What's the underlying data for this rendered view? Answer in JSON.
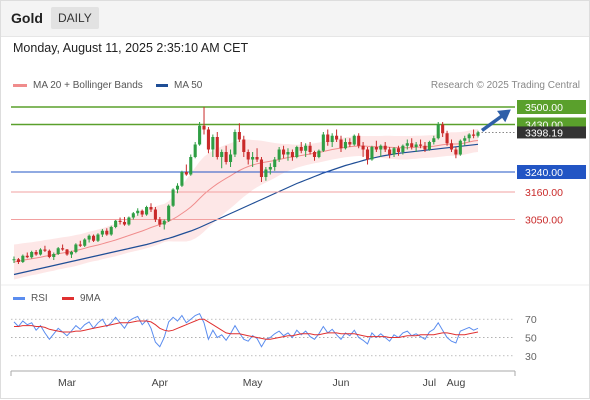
{
  "header": {
    "symbol": "Gold",
    "period": "DAILY",
    "datetime": "Monday, August 11, 2025 2:35:10 AM CET",
    "credit": "Research © 2025 Trading Central"
  },
  "legend": {
    "bollinger_label": "MA 20 + Bollinger Bands",
    "ma50_label": "MA 50",
    "rsi_label": "RSI",
    "rsi_ma_label": "9MA"
  },
  "colors": {
    "bullish": "#2f9e44",
    "bearish": "#c92a2a",
    "ma20": "#f08c8c",
    "band_fill": "#fde3e3",
    "ma50": "#1f4e96",
    "resistance": "#5aa02c",
    "support": "#2255c4",
    "support_light": "#f2a0a0",
    "rsi": "#5b8def",
    "rsi_ma": "#e03131",
    "last_price_bg": "#333333"
  },
  "chart_data": [
    {
      "type": "candlestick",
      "title": "Gold",
      "period": "DAILY",
      "x_ticks": [
        "Mar",
        "Apr",
        "May",
        "Jun",
        "Jul",
        "Aug"
      ],
      "ylim": [
        2800,
        3560
      ],
      "last_price": 3398.19,
      "last_price_label": "3398.19",
      "levels": [
        {
          "value": 3500.0,
          "label": "3500.00",
          "kind": "resistance"
        },
        {
          "value": 3430.0,
          "label": "3430.00",
          "kind": "resistance"
        },
        {
          "value": 3240.0,
          "label": "3240.00",
          "kind": "pivot"
        },
        {
          "value": 3160.0,
          "label": "3160.00",
          "kind": "support"
        },
        {
          "value": 3050.0,
          "label": "3050.00",
          "kind": "support"
        }
      ],
      "forecast_target": 3500.0,
      "ohlc": [
        [
          2888,
          2902,
          2876,
          2891
        ],
        [
          2891,
          2896,
          2872,
          2880
        ],
        [
          2880,
          2910,
          2876,
          2905
        ],
        [
          2905,
          2918,
          2895,
          2899
        ],
        [
          2899,
          2925,
          2894,
          2920
        ],
        [
          2920,
          2928,
          2905,
          2910
        ],
        [
          2910,
          2935,
          2906,
          2930
        ],
        [
          2930,
          2945,
          2920,
          2925
        ],
        [
          2925,
          2930,
          2895,
          2900
        ],
        [
          2900,
          2918,
          2888,
          2912
        ],
        [
          2912,
          2940,
          2908,
          2935
        ],
        [
          2935,
          2950,
          2925,
          2930
        ],
        [
          2930,
          2932,
          2905,
          2910
        ],
        [
          2910,
          2925,
          2896,
          2920
        ],
        [
          2920,
          2955,
          2915,
          2950
        ],
        [
          2950,
          2965,
          2940,
          2945
        ],
        [
          2945,
          2975,
          2940,
          2970
        ],
        [
          2970,
          2990,
          2958,
          2985
        ],
        [
          2985,
          2990,
          2960,
          2965
        ],
        [
          2965,
          2995,
          2960,
          2990
        ],
        [
          2990,
          3012,
          2980,
          3005
        ],
        [
          3005,
          3015,
          2985,
          2990
        ],
        [
          2990,
          3025,
          2985,
          3020
        ],
        [
          3020,
          3048,
          3015,
          3045
        ],
        [
          3045,
          3058,
          3030,
          3040
        ],
        [
          3040,
          3060,
          3025,
          3030
        ],
        [
          3030,
          3062,
          3025,
          3058
        ],
        [
          3058,
          3080,
          3050,
          3075
        ],
        [
          3075,
          3095,
          3065,
          3085
        ],
        [
          3085,
          3090,
          3060,
          3070
        ],
        [
          3070,
          3105,
          3065,
          3100
        ],
        [
          3100,
          3115,
          3080,
          3090
        ],
        [
          3090,
          3100,
          3040,
          3050
        ],
        [
          3050,
          3060,
          3020,
          3030
        ],
        [
          3030,
          3050,
          3010,
          3045
        ],
        [
          3045,
          3110,
          3040,
          3105
        ],
        [
          3105,
          3175,
          3100,
          3170
        ],
        [
          3170,
          3195,
          3155,
          3185
        ],
        [
          3185,
          3245,
          3180,
          3240
        ],
        [
          3240,
          3270,
          3225,
          3230
        ],
        [
          3230,
          3310,
          3225,
          3300
        ],
        [
          3300,
          3360,
          3295,
          3350
        ],
        [
          3350,
          3440,
          3345,
          3425
        ],
        [
          3425,
          3500,
          3390,
          3410
        ],
        [
          3410,
          3420,
          3315,
          3330
        ],
        [
          3330,
          3390,
          3300,
          3380
        ],
        [
          3380,
          3400,
          3290,
          3300
        ],
        [
          3300,
          3330,
          3255,
          3320
        ],
        [
          3320,
          3345,
          3270,
          3280
        ],
        [
          3280,
          3330,
          3260,
          3310
        ],
        [
          3310,
          3410,
          3300,
          3400
        ],
        [
          3400,
          3435,
          3360,
          3370
        ],
        [
          3370,
          3385,
          3300,
          3320
        ],
        [
          3320,
          3330,
          3270,
          3290
        ],
        [
          3290,
          3320,
          3260,
          3300
        ],
        [
          3300,
          3335,
          3280,
          3290
        ],
        [
          3290,
          3300,
          3200,
          3220
        ],
        [
          3220,
          3260,
          3205,
          3250
        ],
        [
          3250,
          3275,
          3230,
          3260
        ],
        [
          3260,
          3300,
          3245,
          3290
        ],
        [
          3290,
          3340,
          3280,
          3330
        ],
        [
          3330,
          3345,
          3295,
          3310
        ],
        [
          3310,
          3335,
          3285,
          3320
        ],
        [
          3320,
          3330,
          3285,
          3300
        ],
        [
          3300,
          3345,
          3295,
          3340
        ],
        [
          3340,
          3360,
          3315,
          3325
        ],
        [
          3325,
          3355,
          3300,
          3345
        ],
        [
          3345,
          3360,
          3310,
          3320
        ],
        [
          3320,
          3325,
          3285,
          3300
        ],
        [
          3300,
          3330,
          3295,
          3325
        ],
        [
          3325,
          3400,
          3320,
          3390
        ],
        [
          3390,
          3410,
          3345,
          3360
        ],
        [
          3360,
          3395,
          3340,
          3385
        ],
        [
          3385,
          3410,
          3360,
          3370
        ],
        [
          3370,
          3385,
          3320,
          3335
        ],
        [
          3335,
          3375,
          3330,
          3360
        ],
        [
          3360,
          3375,
          3340,
          3350
        ],
        [
          3350,
          3390,
          3345,
          3385
        ],
        [
          3385,
          3395,
          3335,
          3345
        ],
        [
          3345,
          3360,
          3300,
          3330
        ],
        [
          3330,
          3340,
          3270,
          3290
        ],
        [
          3290,
          3345,
          3285,
          3340
        ],
        [
          3340,
          3365,
          3320,
          3330
        ],
        [
          3330,
          3350,
          3300,
          3345
        ],
        [
          3345,
          3360,
          3320,
          3330
        ],
        [
          3330,
          3340,
          3295,
          3310
        ],
        [
          3310,
          3340,
          3300,
          3335
        ],
        [
          3335,
          3345,
          3305,
          3320
        ],
        [
          3320,
          3350,
          3310,
          3345
        ],
        [
          3345,
          3370,
          3330,
          3355
        ],
        [
          3355,
          3375,
          3330,
          3340
        ],
        [
          3340,
          3360,
          3320,
          3350
        ],
        [
          3350,
          3370,
          3335,
          3345
        ],
        [
          3345,
          3360,
          3320,
          3330
        ],
        [
          3330,
          3365,
          3325,
          3360
        ],
        [
          3360,
          3385,
          3350,
          3375
        ],
        [
          3375,
          3440,
          3370,
          3430
        ],
        [
          3430,
          3440,
          3380,
          3395
        ],
        [
          3395,
          3405,
          3345,
          3355
        ],
        [
          3355,
          3370,
          3320,
          3330
        ],
        [
          3330,
          3340,
          3295,
          3310
        ],
        [
          3310,
          3370,
          3305,
          3365
        ],
        [
          3365,
          3385,
          3345,
          3375
        ],
        [
          3375,
          3395,
          3360,
          3390
        ],
        [
          3390,
          3410,
          3375,
          3385
        ],
        [
          3385,
          3405,
          3378,
          3398.19
        ]
      ],
      "ma20": [
        2880,
        2883,
        2887,
        2890,
        2893,
        2896,
        2899,
        2903,
        2906,
        2909,
        2913,
        2916,
        2919,
        2922,
        2926,
        2930,
        2935,
        2940,
        2944,
        2948,
        2953,
        2958,
        2963,
        2968,
        2974,
        2980,
        2986,
        2992,
        2998,
        3004,
        3011,
        3018,
        3024,
        3030,
        3036,
        3043,
        3052,
        3062,
        3074,
        3086,
        3100,
        3116,
        3134,
        3151,
        3166,
        3180,
        3193,
        3204,
        3215,
        3225,
        3236,
        3246,
        3255,
        3262,
        3268,
        3273,
        3277,
        3280,
        3283,
        3286,
        3290,
        3294,
        3298,
        3300,
        3303,
        3306,
        3309,
        3312,
        3315,
        3318,
        3322,
        3326,
        3330,
        3333,
        3336,
        3339,
        3341,
        3343,
        3344,
        3344,
        3343,
        3342,
        3341,
        3340,
        3340,
        3339,
        3338,
        3337,
        3337,
        3337,
        3338,
        3339,
        3340,
        3341,
        3342,
        3343,
        3346,
        3349,
        3351,
        3352,
        3352,
        3353,
        3356,
        3360,
        3364,
        3366
      ],
      "bb_width": [
        70,
        69,
        68,
        67,
        66,
        66,
        65,
        65,
        64,
        64,
        63,
        63,
        62,
        62,
        62,
        61,
        61,
        61,
        61,
        62,
        62,
        63,
        64,
        65,
        66,
        67,
        68,
        70,
        72,
        74,
        76,
        78,
        78,
        78,
        76,
        80,
        90,
        100,
        112,
        124,
        134,
        142,
        148,
        150,
        148,
        146,
        142,
        138,
        134,
        130,
        126,
        120,
        114,
        108,
        100,
        94,
        88,
        82,
        76,
        70,
        64,
        58,
        54,
        50,
        46,
        44,
        42,
        41,
        40,
        40,
        40,
        40,
        40,
        40,
        40,
        40,
        40,
        40,
        40,
        40,
        41,
        42,
        43,
        44,
        45,
        46,
        46,
        47,
        47,
        47,
        46,
        46,
        45,
        45,
        45,
        45,
        46,
        47,
        47,
        47,
        47,
        47,
        46,
        46,
        46,
        46
      ],
      "ma50": [
        2830,
        2834,
        2838,
        2842,
        2846,
        2850,
        2854,
        2858,
        2862,
        2866,
        2870,
        2874,
        2878,
        2882,
        2886,
        2890,
        2894,
        2898,
        2902,
        2906,
        2910,
        2914,
        2918,
        2922,
        2926,
        2930,
        2934,
        2938,
        2942,
        2946,
        2950,
        2955,
        2960,
        2965,
        2970,
        2975,
        2980,
        2986,
        2992,
        2998,
        3004,
        3011,
        3018,
        3026,
        3034,
        3042,
        3050,
        3058,
        3066,
        3074,
        3082,
        3090,
        3098,
        3106,
        3114,
        3122,
        3130,
        3138,
        3146,
        3154,
        3162,
        3170,
        3178,
        3186,
        3194,
        3201,
        3208,
        3215,
        3222,
        3229,
        3236,
        3242,
        3248,
        3254,
        3260,
        3266,
        3271,
        3276,
        3281,
        3286,
        3291,
        3295,
        3299,
        3303,
        3306,
        3309,
        3312,
        3315,
        3317,
        3319,
        3321,
        3323,
        3325,
        3327,
        3329,
        3331,
        3333,
        3335,
        3337,
        3339,
        3341,
        3343,
        3345,
        3347,
        3349,
        3351
      ],
      "rsi_ticks": [
        70,
        50,
        30
      ],
      "rsi_ylim": [
        20,
        80
      ],
      "rsi": [
        67,
        62,
        68,
        64,
        66,
        58,
        63,
        55,
        48,
        54,
        60,
        56,
        52,
        57,
        63,
        59,
        64,
        67,
        60,
        66,
        70,
        62,
        66,
        72,
        66,
        60,
        68,
        71,
        73,
        64,
        69,
        60,
        45,
        40,
        50,
        67,
        72,
        68,
        74,
        66,
        70,
        74,
        76,
        66,
        48,
        58,
        50,
        53,
        47,
        54,
        63,
        55,
        48,
        46,
        52,
        49,
        40,
        48,
        50,
        54,
        57,
        52,
        55,
        50,
        58,
        53,
        57,
        51,
        48,
        54,
        62,
        55,
        59,
        53,
        48,
        55,
        52,
        58,
        50,
        47,
        43,
        55,
        50,
        54,
        50,
        46,
        53,
        50,
        55,
        57,
        52,
        54,
        51,
        48,
        56,
        59,
        66,
        58,
        50,
        46,
        44,
        57,
        59,
        61,
        58,
        60
      ],
      "rsi_ma": [
        62,
        62,
        63,
        63,
        63,
        62,
        62,
        61,
        59,
        58,
        57,
        56,
        56,
        56,
        57,
        57,
        58,
        59,
        60,
        61,
        62,
        63,
        64,
        65,
        66,
        66,
        66,
        67,
        68,
        68,
        68,
        67,
        64,
        60,
        58,
        57,
        58,
        60,
        62,
        64,
        66,
        68,
        70,
        70,
        67,
        64,
        61,
        58,
        55,
        54,
        54,
        54,
        53,
        52,
        51,
        50,
        49,
        48,
        48,
        49,
        50,
        51,
        52,
        52,
        53,
        54,
        54,
        54,
        53,
        53,
        54,
        55,
        55,
        55,
        54,
        54,
        54,
        54,
        53,
        52,
        51,
        51,
        51,
        51,
        51,
        50,
        50,
        50,
        51,
        52,
        52,
        52,
        53,
        53,
        53,
        53,
        54,
        55,
        55,
        54,
        53,
        53,
        53,
        54,
        55,
        56
      ]
    }
  ]
}
